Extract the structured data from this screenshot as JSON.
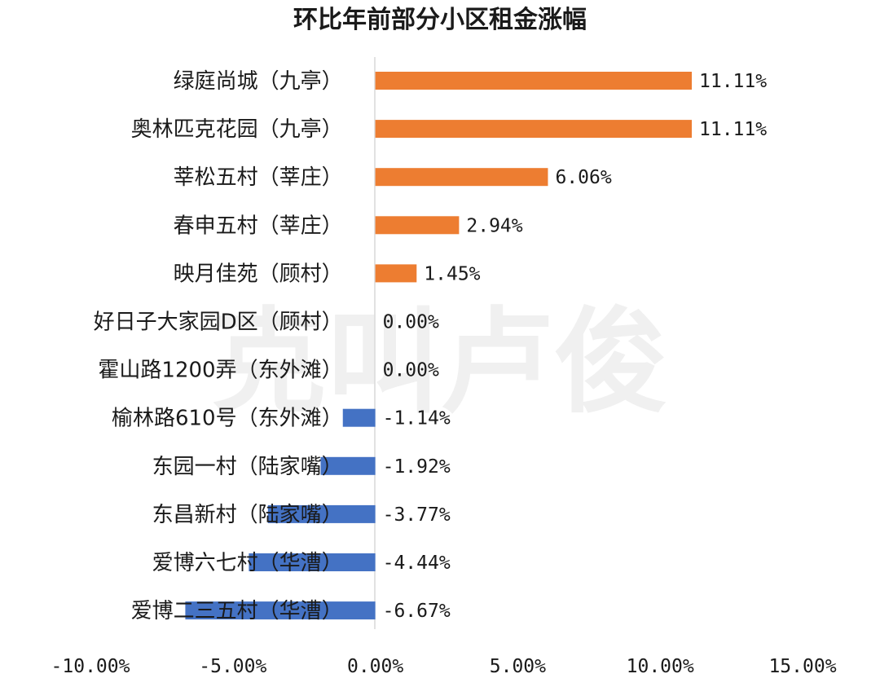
{
  "chart_data": {
    "type": "bar",
    "orientation": "horizontal",
    "title": "环比年前部分小区租金涨幅",
    "categories": [
      "绿庭尚城（九亭）",
      "奥林匹克花园（九亭）",
      "莘松五村（莘庄）",
      "春申五村（莘庄）",
      "映月佳苑（顾村）",
      "好日子大家园D区（顾村）",
      "霍山路1200弄（东外滩）",
      "榆林路610号（东外滩）",
      "东园一村（陆家嘴）",
      "东昌新村（陆家嘴）",
      "爱博六七村（华漕）",
      "爱博二三五村（华漕）"
    ],
    "values": [
      11.11,
      11.11,
      6.06,
      2.94,
      1.45,
      0.0,
      0.0,
      -1.14,
      -1.92,
      -3.77,
      -4.44,
      -6.67
    ],
    "value_labels": [
      "11.11%",
      "11.11%",
      "6.06%",
      "2.94%",
      "1.45%",
      "0.00%",
      "0.00%",
      "-1.14%",
      "-1.92%",
      "-3.77%",
      "-4.44%",
      "-6.67%"
    ],
    "xlim": [
      -10,
      15
    ],
    "x_ticks": [
      -10,
      -5,
      0,
      5,
      10,
      15
    ],
    "x_tick_labels": [
      "-10.00%",
      "-5.00%",
      "0.00%",
      "5.00%",
      "10.00%",
      "15.00%"
    ],
    "xlabel": "",
    "ylabel": "",
    "grid": false,
    "legend": "none",
    "colors": {
      "positive": "#ED7D31",
      "negative": "#4472C4",
      "zero_line": "#D9D9D9"
    }
  },
  "watermark": {
    "text": "克叫卢俊"
  }
}
